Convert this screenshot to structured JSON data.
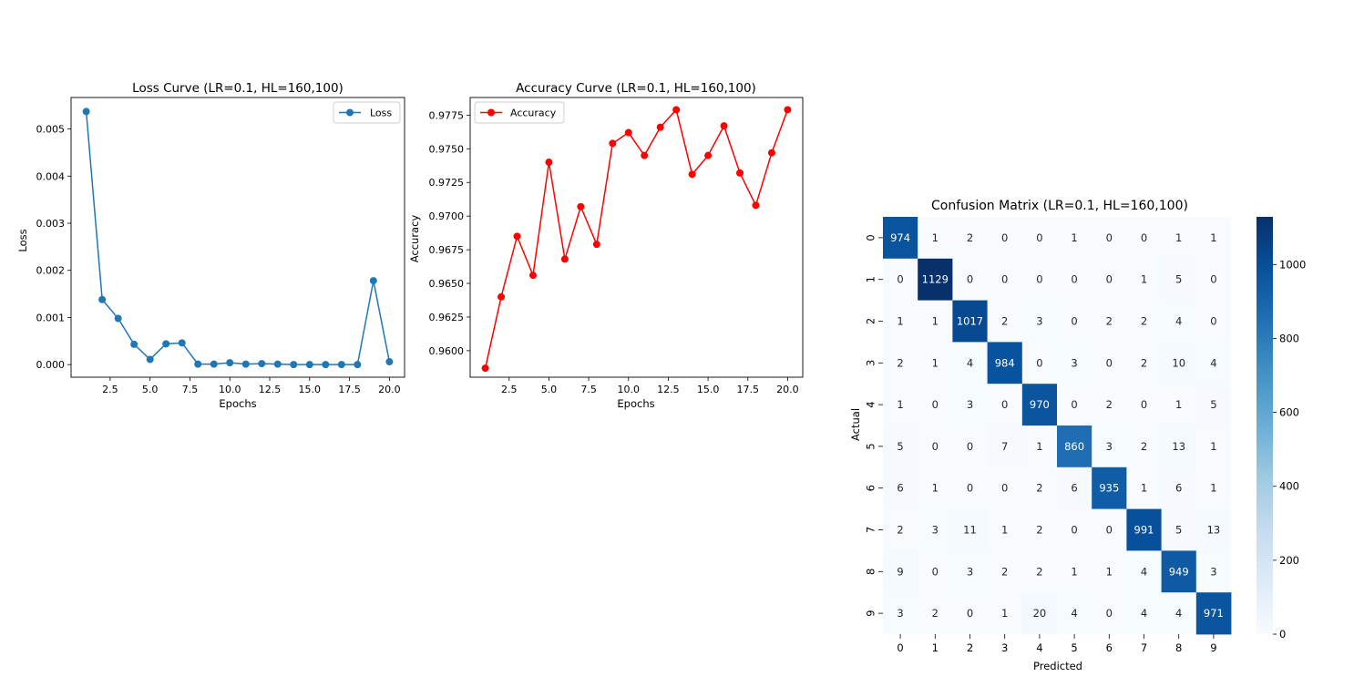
{
  "chart_data": [
    {
      "type": "line",
      "title": "Loss Curve (LR=0.1, HL=160,100)",
      "xlabel": "Epochs",
      "ylabel": "Loss",
      "xlim": [
        0.05,
        20.95
      ],
      "ylim": [
        -0.000268,
        0.005668
      ],
      "xticks": [
        2.5,
        5.0,
        7.5,
        10.0,
        12.5,
        15.0,
        17.5,
        20.0
      ],
      "xtick_labels": [
        "2.5",
        "5.0",
        "7.5",
        "10.0",
        "12.5",
        "15.0",
        "17.5",
        "20.0"
      ],
      "yticks": [
        0.0,
        0.001,
        0.002,
        0.003,
        0.004,
        0.005
      ],
      "ytick_labels": [
        "0.000",
        "0.001",
        "0.002",
        "0.003",
        "0.004",
        "0.005"
      ],
      "legend_position": "top-right",
      "grid": false,
      "series": [
        {
          "name": "Loss",
          "color": "#1f77b4",
          "marker": "circle",
          "x": [
            1,
            2,
            3,
            4,
            5,
            6,
            7,
            8,
            9,
            10,
            11,
            12,
            13,
            14,
            15,
            16,
            17,
            18,
            19,
            20
          ],
          "values": [
            0.00537,
            0.00138,
            0.00098,
            0.00043,
            0.00011,
            0.00044,
            0.00046,
            1e-05,
            1e-05,
            4e-05,
            1e-05,
            2e-05,
            1e-05,
            0.0,
            0.0,
            0.0,
            0.0,
            0.0,
            0.00178,
            6e-05
          ]
        }
      ]
    },
    {
      "type": "line",
      "title": "Accuracy Curve (LR=0.1, HL=160,100)",
      "xlabel": "Epochs",
      "ylabel": "Accuracy",
      "xlim": [
        0.05,
        20.95
      ],
      "ylim": [
        0.95803,
        0.97881
      ],
      "xticks": [
        2.5,
        5.0,
        7.5,
        10.0,
        12.5,
        15.0,
        17.5,
        20.0
      ],
      "xtick_labels": [
        "2.5",
        "5.0",
        "7.5",
        "10.0",
        "12.5",
        "15.0",
        "17.5",
        "20.0"
      ],
      "yticks": [
        0.96,
        0.9625,
        0.965,
        0.9675,
        0.97,
        0.9725,
        0.975,
        0.9775
      ],
      "ytick_labels": [
        "0.9600",
        "0.9625",
        "0.9650",
        "0.9675",
        "0.9700",
        "0.9725",
        "0.9750",
        "0.9775"
      ],
      "legend_position": "top-left",
      "grid": false,
      "series": [
        {
          "name": "Accuracy",
          "color": "#ff0000",
          "marker": "circle",
          "x": [
            1,
            2,
            3,
            4,
            5,
            6,
            7,
            8,
            9,
            10,
            11,
            12,
            13,
            14,
            15,
            16,
            17,
            18,
            19,
            20
          ],
          "values": [
            0.9587,
            0.964,
            0.9685,
            0.9656,
            0.974,
            0.9668,
            0.9707,
            0.9679,
            0.9754,
            0.9762,
            0.9745,
            0.9766,
            0.9779,
            0.9731,
            0.9745,
            0.9767,
            0.9732,
            0.9708,
            0.9747,
            0.9779
          ]
        }
      ]
    },
    {
      "type": "heatmap",
      "title": "Confusion Matrix (LR=0.1, HL=160,100)",
      "xlabel": "Predicted",
      "ylabel": "Actual",
      "x_categories": [
        "0",
        "1",
        "2",
        "3",
        "4",
        "5",
        "6",
        "7",
        "8",
        "9"
      ],
      "y_categories": [
        "0",
        "1",
        "2",
        "3",
        "4",
        "5",
        "6",
        "7",
        "8",
        "9"
      ],
      "colormap": "Blues",
      "vmin": 0,
      "vmax": 1129,
      "colorbar_ticks": [
        0,
        200,
        400,
        600,
        800,
        1000
      ],
      "colorbar_tick_labels": [
        "0",
        "200",
        "400",
        "600",
        "800",
        "1000"
      ],
      "values": [
        [
          974,
          1,
          2,
          0,
          0,
          1,
          0,
          0,
          1,
          1
        ],
        [
          0,
          1129,
          0,
          0,
          0,
          0,
          0,
          1,
          5,
          0
        ],
        [
          1,
          1,
          1017,
          2,
          3,
          0,
          2,
          2,
          4,
          0
        ],
        [
          2,
          1,
          4,
          984,
          0,
          3,
          0,
          2,
          10,
          4
        ],
        [
          1,
          0,
          3,
          0,
          970,
          0,
          2,
          0,
          1,
          5
        ],
        [
          5,
          0,
          0,
          7,
          1,
          860,
          3,
          2,
          13,
          1
        ],
        [
          6,
          1,
          0,
          0,
          2,
          6,
          935,
          1,
          6,
          1
        ],
        [
          2,
          3,
          11,
          1,
          2,
          0,
          0,
          991,
          5,
          13
        ],
        [
          9,
          0,
          3,
          2,
          2,
          1,
          1,
          4,
          949,
          3
        ],
        [
          3,
          2,
          0,
          1,
          20,
          4,
          0,
          4,
          4,
          971
        ]
      ]
    }
  ]
}
